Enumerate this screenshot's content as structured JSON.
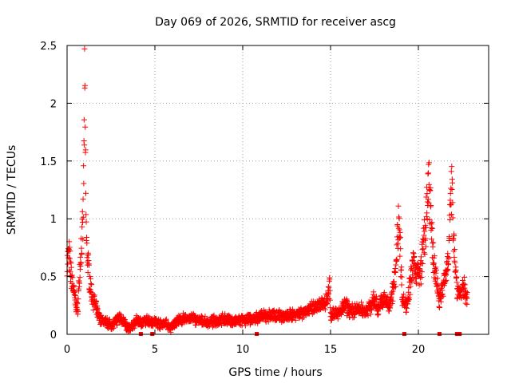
{
  "chart_data": {
    "type": "scatter",
    "title": "Day 069 of 2026, SRMTID for receiver ascg",
    "xlabel": "GPS time / hours",
    "ylabel": "SRMTID / TECUs",
    "xlim": [
      0,
      24
    ],
    "ylim": [
      0,
      2.5
    ],
    "x_ticks": [
      "0",
      "5",
      "10",
      "15",
      "20"
    ],
    "x_tick_values": [
      0,
      5,
      10,
      15,
      20
    ],
    "y_ticks": [
      "0",
      "0.5",
      "1",
      "1.5",
      "2",
      "2.5"
    ],
    "y_tick_values": [
      0,
      0.5,
      1,
      1.5,
      2,
      2.5
    ],
    "grid": true,
    "marker": "plus",
    "series_color": "#ff0000",
    "gap_markers_x": [
      4.2,
      4.85,
      10.8,
      19.2,
      21.2,
      22.2,
      22.35
    ],
    "profile": {
      "x": [
        0,
        0.1,
        0.2,
        0.3,
        0.45,
        0.6,
        0.7,
        0.8,
        0.9,
        0.95,
        1.0,
        1.05,
        1.1,
        1.2,
        1.3,
        1.4,
        1.5,
        1.6,
        1.8,
        2.0,
        2.3,
        2.6,
        3.0,
        3.2,
        3.4,
        3.6,
        3.8,
        4.0,
        4.3,
        4.6,
        5.0,
        5.3,
        5.6,
        5.9,
        6.2,
        6.6,
        7.0,
        7.5,
        8.0,
        8.5,
        9.0,
        9.5,
        10.0,
        10.5,
        11.0,
        11.5,
        12.0,
        12.5,
        13.0,
        13.5,
        14.0,
        14.5,
        14.8,
        14.95,
        15.0,
        15.2,
        15.5,
        15.8,
        16.2,
        16.6,
        17.0,
        17.3,
        17.5,
        17.7,
        17.9,
        18.1,
        18.3,
        18.5,
        18.7,
        18.8,
        18.9,
        19.0,
        19.1,
        19.3,
        19.5,
        19.7,
        19.9,
        20.1,
        20.3,
        20.4,
        20.5,
        20.6,
        20.7,
        20.8,
        20.9,
        21.0,
        21.2,
        21.4,
        21.6,
        21.7,
        21.8,
        21.9,
        22.0,
        22.1,
        22.2,
        22.4,
        22.6,
        22.8
      ],
      "y": [
        0.6,
        0.7,
        0.55,
        0.45,
        0.3,
        0.2,
        0.5,
        0.75,
        0.9,
        1.4,
        2.1,
        1.5,
        0.8,
        0.6,
        0.45,
        0.35,
        0.3,
        0.25,
        0.15,
        0.12,
        0.1,
        0.08,
        0.15,
        0.12,
        0.06,
        0.05,
        0.09,
        0.12,
        0.1,
        0.12,
        0.11,
        0.09,
        0.1,
        0.05,
        0.11,
        0.13,
        0.14,
        0.12,
        0.1,
        0.12,
        0.13,
        0.11,
        0.12,
        0.13,
        0.15,
        0.16,
        0.17,
        0.15,
        0.18,
        0.2,
        0.22,
        0.25,
        0.3,
        0.45,
        0.15,
        0.2,
        0.18,
        0.25,
        0.2,
        0.22,
        0.2,
        0.25,
        0.3,
        0.22,
        0.28,
        0.3,
        0.25,
        0.35,
        0.5,
        0.8,
        1.05,
        0.6,
        0.3,
        0.25,
        0.4,
        0.6,
        0.55,
        0.5,
        0.8,
        0.9,
        1.1,
        1.3,
        1.1,
        0.7,
        0.6,
        0.5,
        0.3,
        0.4,
        0.55,
        0.7,
        1.0,
        1.25,
        0.9,
        0.6,
        0.4,
        0.35,
        0.4,
        0.32
      ]
    }
  }
}
